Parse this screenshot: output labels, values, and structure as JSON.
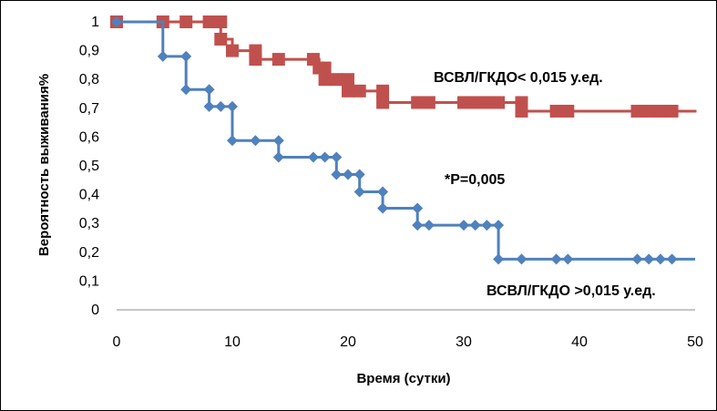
{
  "chart_data": {
    "type": "line",
    "step": true,
    "title": "",
    "xlabel": "Время (сутки)",
    "ylabel": "Вероятность выживания%",
    "xlim": [
      0,
      50
    ],
    "ylim": [
      0,
      1
    ],
    "xticks": [
      "0",
      "10",
      "20",
      "30",
      "40",
      "50"
    ],
    "yticks": [
      "0",
      "0,1",
      "0,2",
      "0,3",
      "0,4",
      "0,5",
      "0,6",
      "0,7",
      "0,8",
      "0,9",
      "1"
    ],
    "grid": false,
    "legend": "none",
    "series": [
      {
        "name": "ВСВЛ/ГКДО< 0,015 у.ед.",
        "color": "#C0504D",
        "marker": "square",
        "x": [
          0,
          4,
          6,
          8,
          8.5,
          9,
          9,
          10,
          12,
          12,
          14,
          17,
          17.5,
          18,
          18,
          19,
          20,
          20,
          21,
          23,
          23,
          26,
          27,
          30,
          31,
          32,
          33,
          35,
          35,
          38,
          39,
          45,
          46,
          47,
          48
        ],
        "y": [
          1,
          1,
          1,
          1,
          1,
          1,
          0.94,
          0.9,
          0.9,
          0.87,
          0.87,
          0.87,
          0.84,
          0.84,
          0.8,
          0.8,
          0.8,
          0.76,
          0.76,
          0.76,
          0.72,
          0.72,
          0.72,
          0.72,
          0.72,
          0.72,
          0.72,
          0.72,
          0.69,
          0.69,
          0.69,
          0.69,
          0.69,
          0.69,
          0.69
        ],
        "end_x": 50,
        "end_y": 0.685
      },
      {
        "name": "ВСВЛ/ГКДО >0,015 у.ед.",
        "color": "#4F81BD",
        "marker": "diamond",
        "x": [
          0,
          4,
          6,
          6,
          8,
          8,
          9,
          10,
          10,
          12,
          14,
          14,
          17,
          18,
          19,
          19,
          20,
          21,
          21,
          23,
          23,
          26,
          26,
          27,
          30,
          31,
          32,
          33,
          33,
          35,
          38,
          39,
          45,
          46,
          47,
          48
        ],
        "y": [
          1,
          0.88,
          0.88,
          0.765,
          0.765,
          0.706,
          0.706,
          0.706,
          0.588,
          0.588,
          0.588,
          0.53,
          0.53,
          0.53,
          0.53,
          0.47,
          0.47,
          0.47,
          0.41,
          0.41,
          0.353,
          0.353,
          0.294,
          0.294,
          0.294,
          0.294,
          0.294,
          0.294,
          0.176,
          0.176,
          0.176,
          0.176,
          0.176,
          0.176,
          0.176,
          0.176
        ],
        "end_x": 50,
        "end_y": 0.176
      }
    ],
    "annotations": [
      "*Р=0,005"
    ]
  }
}
